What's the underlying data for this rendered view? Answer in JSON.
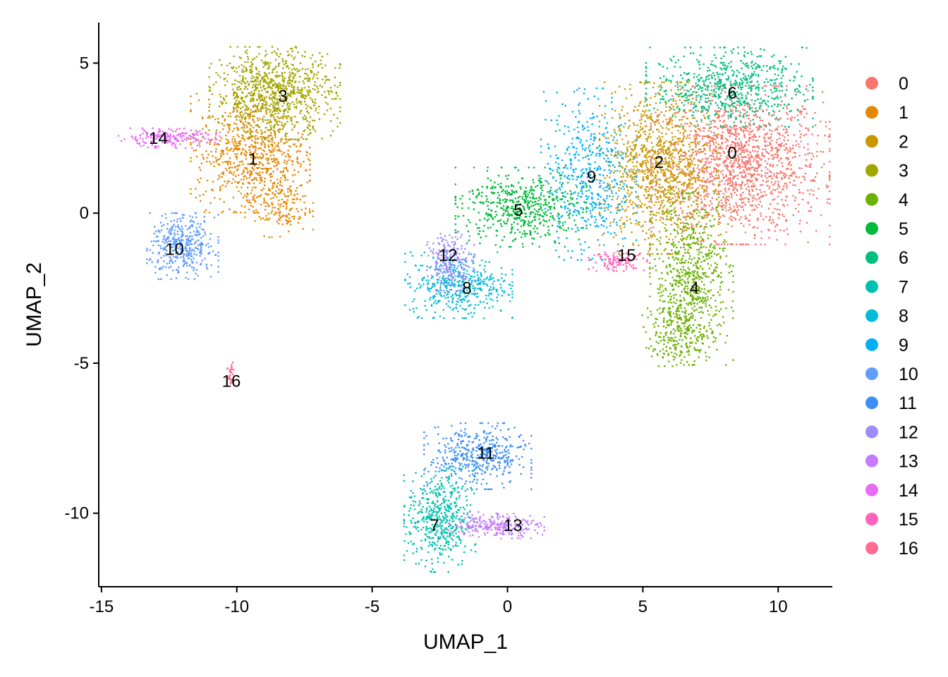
{
  "chart_data": {
    "type": "scatter",
    "xlabel": "UMAP_1",
    "ylabel": "UMAP_2",
    "xlim": [
      -15.1,
      12.0
    ],
    "ylim": [
      -12.45,
      6.35
    ],
    "x_ticks": [
      -15,
      -10,
      -5,
      0,
      5,
      10
    ],
    "y_ticks": [
      5,
      0,
      -5,
      -10
    ],
    "x_tick_labels": [
      "-15",
      "-10",
      "-5",
      "0",
      "5",
      "10"
    ],
    "y_tick_labels": [
      "5",
      "0",
      "-5",
      "-10"
    ],
    "grid": false,
    "legend_position": "right",
    "legend_labels": [
      "0",
      "1",
      "2",
      "3",
      "4",
      "5",
      "6",
      "7",
      "8",
      "9",
      "10",
      "11",
      "12",
      "13",
      "14",
      "15",
      "16"
    ],
    "colors": [
      "#F8766D",
      "#E58700",
      "#C99800",
      "#A3A500",
      "#6BB100",
      "#00BA38",
      "#00BF7D",
      "#00C0AF",
      "#00BCD8",
      "#00B0F6",
      "#619CFF",
      "#3D8FF6",
      "#9F8CF8",
      "#C77CFF",
      "#E76BF3",
      "#FF62BC",
      "#FF6C91"
    ],
    "clusters": [
      {
        "id": "0",
        "label_pos": [
          8.3,
          2.0
        ],
        "regions": [
          {
            "cx": 8.6,
            "cy": 1.6,
            "sx": 1.5,
            "sy": 1.2,
            "n": 1500
          }
        ]
      },
      {
        "id": "1",
        "label_pos": [
          -9.4,
          1.8
        ],
        "regions": [
          {
            "cx": -9.5,
            "cy": 2.0,
            "sx": 1.0,
            "sy": 0.9,
            "n": 700
          },
          {
            "cx": -8.5,
            "cy": 0.3,
            "sx": 0.6,
            "sy": 0.5,
            "n": 180
          }
        ]
      },
      {
        "id": "2",
        "label_pos": [
          5.6,
          1.7
        ],
        "regions": [
          {
            "cx": 5.6,
            "cy": 1.5,
            "sx": 1.0,
            "sy": 1.3,
            "n": 1100
          }
        ]
      },
      {
        "id": "3",
        "label_pos": [
          -8.3,
          3.9
        ],
        "regions": [
          {
            "cx": -8.6,
            "cy": 4.0,
            "sx": 1.1,
            "sy": 0.7,
            "n": 900
          }
        ]
      },
      {
        "id": "4",
        "label_pos": [
          6.9,
          -2.5
        ],
        "regions": [
          {
            "cx": 6.8,
            "cy": -2.2,
            "sx": 0.7,
            "sy": 1.3,
            "n": 700
          },
          {
            "cx": 6.3,
            "cy": -4.0,
            "sx": 0.6,
            "sy": 0.5,
            "n": 200
          }
        ]
      },
      {
        "id": "5",
        "label_pos": [
          0.4,
          0.1
        ],
        "regions": [
          {
            "cx": 0.5,
            "cy": 0.2,
            "sx": 1.1,
            "sy": 0.6,
            "n": 550
          }
        ]
      },
      {
        "id": "6",
        "label_pos": [
          8.3,
          4.0
        ],
        "regions": [
          {
            "cx": 8.2,
            "cy": 4.2,
            "sx": 1.4,
            "sy": 0.6,
            "n": 650
          }
        ]
      },
      {
        "id": "7",
        "label_pos": [
          -2.7,
          -10.4
        ],
        "regions": [
          {
            "cx": -2.5,
            "cy": -10.2,
            "sx": 0.6,
            "sy": 0.8,
            "n": 500
          }
        ]
      },
      {
        "id": "8",
        "label_pos": [
          -1.5,
          -2.5
        ],
        "regions": [
          {
            "cx": -1.8,
            "cy": -2.4,
            "sx": 0.9,
            "sy": 0.5,
            "n": 450
          }
        ]
      },
      {
        "id": "9",
        "label_pos": [
          3.1,
          1.2
        ],
        "regions": [
          {
            "cx": 3.0,
            "cy": 1.3,
            "sx": 0.8,
            "sy": 1.3,
            "n": 500
          }
        ]
      },
      {
        "id": "10",
        "label_pos": [
          -12.3,
          -1.2
        ],
        "regions": [
          {
            "cx": -12.0,
            "cy": -1.1,
            "sx": 0.6,
            "sy": 0.5,
            "n": 400
          }
        ]
      },
      {
        "id": "11",
        "label_pos": [
          -0.8,
          -8.0
        ],
        "regions": [
          {
            "cx": -1.1,
            "cy": -8.1,
            "sx": 0.9,
            "sy": 0.5,
            "n": 450
          }
        ]
      },
      {
        "id": "12",
        "label_pos": [
          -2.2,
          -1.4
        ],
        "regions": [
          {
            "cx": -2.1,
            "cy": -1.6,
            "sx": 0.4,
            "sy": 0.45,
            "n": 220
          }
        ]
      },
      {
        "id": "13",
        "label_pos": [
          0.2,
          -10.4
        ],
        "regions": [
          {
            "cx": -0.4,
            "cy": -10.4,
            "sx": 0.8,
            "sy": 0.2,
            "n": 250
          }
        ]
      },
      {
        "id": "14",
        "label_pos": [
          -12.9,
          2.5
        ],
        "regions": [
          {
            "cx": -12.6,
            "cy": 2.5,
            "sx": 0.9,
            "sy": 0.15,
            "n": 200
          }
        ]
      },
      {
        "id": "15",
        "label_pos": [
          4.4,
          -1.4
        ],
        "regions": [
          {
            "cx": 4.1,
            "cy": -1.6,
            "sx": 0.5,
            "sy": 0.15,
            "n": 110
          }
        ]
      },
      {
        "id": "16",
        "label_pos": [
          -10.2,
          -5.6
        ],
        "regions": [
          {
            "cx": -10.2,
            "cy": -5.4,
            "sx": 0.08,
            "sy": 0.25,
            "n": 30
          }
        ]
      }
    ]
  }
}
